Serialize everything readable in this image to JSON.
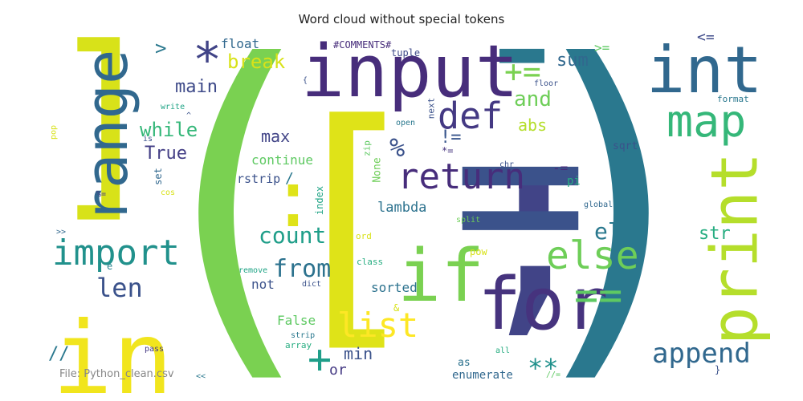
{
  "chart_data": {
    "type": "wordcloud",
    "title": "Word cloud without special tokens",
    "annotation": "File: Python_clean.csv",
    "words": [
      {
        "text": "(",
        "color": "#7ad151"
      },
      {
        "text": ")",
        "color": "#2a788e"
      },
      {
        "text": "]",
        "color": "#d8e219"
      },
      {
        "text": "[",
        "color": "#dfe318"
      },
      {
        "text": ";",
        "color": "#414487"
      },
      {
        "text": "=",
        "color": "#3b528b"
      },
      {
        "text": "-",
        "color": "#2a788e"
      },
      {
        "text": ":",
        "color": "#dfe318"
      },
      {
        "text": "in",
        "color": "#f1e51d"
      },
      {
        "text": "range",
        "color": "#31688e"
      },
      {
        "text": "input",
        "color": "#472d7b"
      },
      {
        "text": "int",
        "color": "#31688e"
      },
      {
        "text": "map",
        "color": "#35b779"
      },
      {
        "text": "print",
        "color": "#b5de2b"
      },
      {
        "text": "import",
        "color": "#21918c"
      },
      {
        "text": "len",
        "color": "#3b528b"
      },
      {
        "text": "if",
        "color": "#7ad151"
      },
      {
        "text": "for",
        "color": "#46337e"
      },
      {
        "text": "else",
        "color": "#6ece58"
      },
      {
        "text": "==",
        "color": "#5ec962"
      },
      {
        "text": "def",
        "color": "#443983"
      },
      {
        "text": "return",
        "color": "#472d7b"
      },
      {
        "text": "list",
        "color": "#fde725"
      },
      {
        "text": "append",
        "color": "#31688e"
      },
      {
        "text": "elif",
        "color": "#2a788e"
      },
      {
        "text": "str",
        "color": "#27ad81"
      },
      {
        "text": "from",
        "color": "#2c728e"
      },
      {
        "text": "count",
        "color": "#1f9e89"
      },
      {
        "text": "max",
        "color": "#414487"
      },
      {
        "text": "+=",
        "color": "#7ad151"
      },
      {
        "text": "and",
        "color": "#6ece58"
      },
      {
        "text": "abs",
        "color": "#b5de2b"
      },
      {
        "text": "sum",
        "color": "#31688e"
      },
      {
        "text": "break",
        "color": "#d8e219"
      },
      {
        "text": "main",
        "color": "#3e4a89"
      },
      {
        "text": "while",
        "color": "#35b779"
      },
      {
        "text": "True",
        "color": "#433e85"
      },
      {
        "text": "*",
        "color": "#414487"
      },
      {
        "text": ">",
        "color": "#2a788e"
      },
      {
        "text": "float",
        "color": "#31688e"
      },
      {
        "text": "#COMMENTS#",
        "color": "#472d7b"
      },
      {
        "text": "tuple",
        "color": "#3e4a89"
      },
      {
        "text": "%",
        "color": "#3b528b"
      },
      {
        "text": "continue",
        "color": "#5ec962"
      },
      {
        "text": "rstrip",
        "color": "#3b528b"
      },
      {
        "text": "/",
        "color": "#2a788e"
      },
      {
        "text": "lambda",
        "color": "#2c728e"
      },
      {
        "text": "index",
        "color": "#20a486"
      },
      {
        "text": "None",
        "color": "#6ece58"
      },
      {
        "text": "zip",
        "color": "#5ec962"
      },
      {
        "text": "!=",
        "color": "#39568c"
      },
      {
        "text": "*=",
        "color": "#46337e"
      },
      {
        "text": "open",
        "color": "#2a788e"
      },
      {
        "text": "next",
        "color": "#3b528b"
      },
      {
        "text": "floor",
        "color": "#3b528b"
      },
      {
        "text": "format",
        "color": "#2a788e"
      },
      {
        "text": "<=",
        "color": "#3e4a89"
      },
      {
        "text": ">=",
        "color": "#5ec962"
      },
      {
        "text": "-=",
        "color": "#472d7b"
      },
      {
        "text": "pi",
        "color": "#27ad81"
      },
      {
        "text": "chr",
        "color": "#3b528b"
      },
      {
        "text": "sqrt",
        "color": "#3b528b"
      },
      {
        "text": "global",
        "color": "#31688e"
      },
      {
        "text": "split",
        "color": "#6ece58"
      },
      {
        "text": "pow",
        "color": "#d8e219"
      },
      {
        "text": "ord",
        "color": "#d8e219"
      },
      {
        "text": "class",
        "color": "#27ad81"
      },
      {
        "text": "sorted",
        "color": "#2c728e"
      },
      {
        "text": "&",
        "color": "#d8e219"
      },
      {
        "text": "False",
        "color": "#5ec962"
      },
      {
        "text": "strip",
        "color": "#2a788e"
      },
      {
        "text": "array",
        "color": "#27ad81"
      },
      {
        "text": "min",
        "color": "#3b528b"
      },
      {
        "text": "+",
        "color": "#1f9e89"
      },
      {
        "text": "or",
        "color": "#443983"
      },
      {
        "text": "as",
        "color": "#2c728e"
      },
      {
        "text": "enumerate",
        "color": "#31688e"
      },
      {
        "text": "all",
        "color": "#27ad81"
      },
      {
        "text": "**",
        "color": "#21918c"
      },
      {
        "text": "//=",
        "color": "#5ec962"
      },
      {
        "text": "}",
        "color": "#3b528b"
      },
      {
        "text": "not",
        "color": "#3b528b"
      },
      {
        "text": "remove",
        "color": "#20a486"
      },
      {
        "text": "dict",
        "color": "#3b528b"
      },
      {
        "text": "pass",
        "color": "#443983"
      },
      {
        "text": "<<",
        "color": "#2a788e"
      },
      {
        "text": "//",
        "color": "#2a788e"
      },
      {
        "text": ">>",
        "color": "#31688e"
      },
      {
        "text": "e",
        "color": "#26828e"
      },
      {
        "text": "write",
        "color": "#20a486"
      },
      {
        "text": "^",
        "color": "#3b528b"
      },
      {
        "text": "is",
        "color": "#3b528b"
      },
      {
        "text": "set",
        "color": "#31688e"
      },
      {
        "text": "%=",
        "color": "#433e85"
      },
      {
        "text": "cos",
        "color": "#d8e219"
      },
      {
        "text": "pop",
        "color": "#d8e219"
      },
      {
        "text": "{",
        "color": "#3b528b"
      }
    ]
  }
}
